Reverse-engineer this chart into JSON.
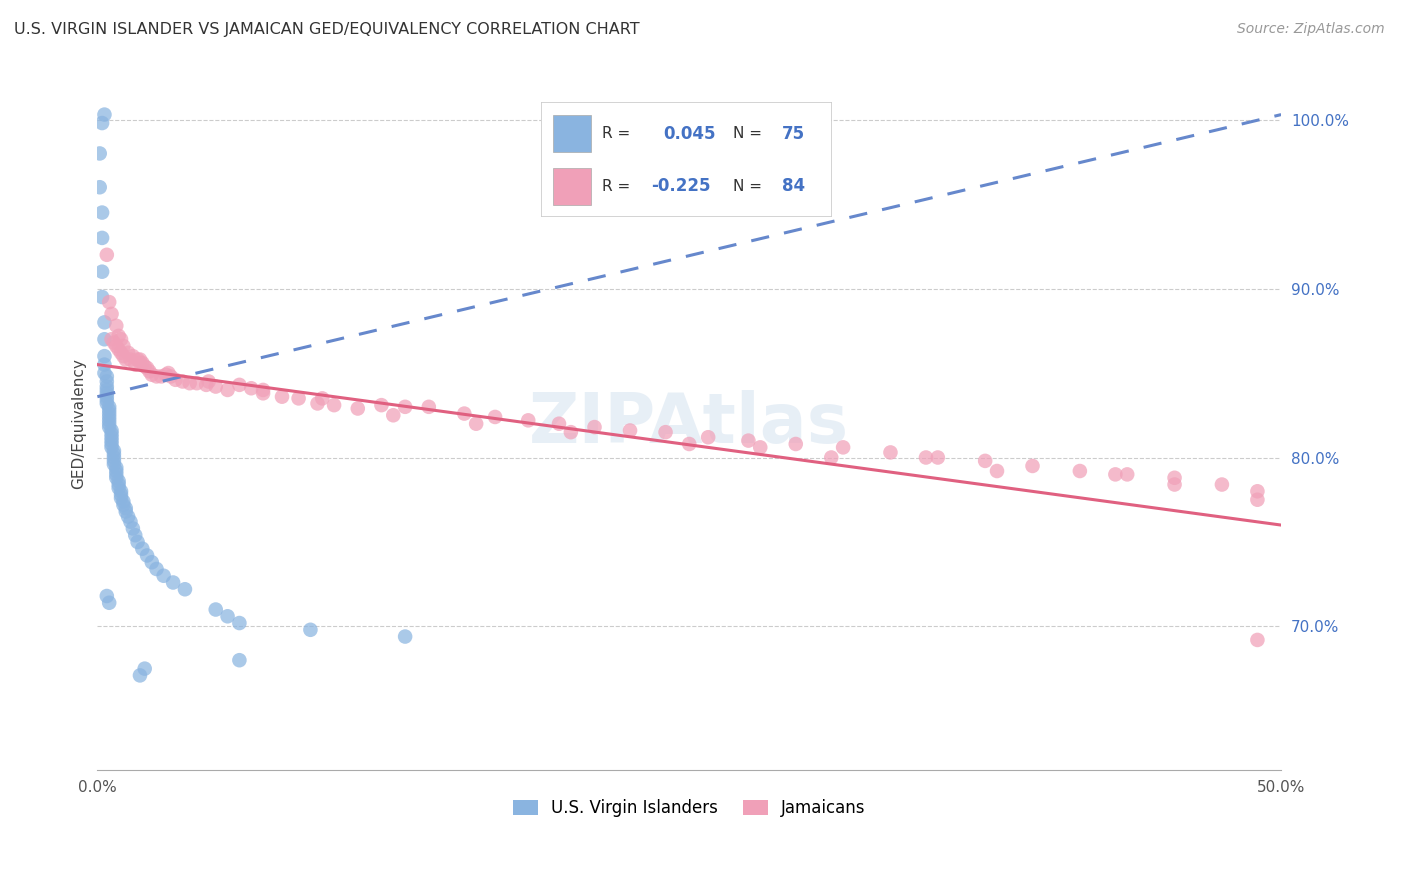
{
  "title": "U.S. VIRGIN ISLANDER VS JAMAICAN GED/EQUIVALENCY CORRELATION CHART",
  "source": "Source: ZipAtlas.com",
  "ylabel": "GED/Equivalency",
  "xlim": [
    0.0,
    0.5
  ],
  "ylim": [
    0.615,
    1.025
  ],
  "xticks": [
    0.0,
    0.1,
    0.2,
    0.3,
    0.4,
    0.5
  ],
  "xtick_labels": [
    "0.0%",
    "",
    "",
    "",
    "",
    "50.0%"
  ],
  "ytick_labels_right": [
    "70.0%",
    "80.0%",
    "90.0%",
    "100.0%"
  ],
  "ytick_positions_right": [
    0.7,
    0.8,
    0.9,
    1.0
  ],
  "color_blue": "#8ab4e0",
  "color_pink": "#f0a0b8",
  "line_blue_color": "#6688cc",
  "line_pink_color": "#e06080",
  "trendline1_x": [
    0.0,
    0.5
  ],
  "trendline1_y": [
    0.836,
    1.003
  ],
  "trendline2_x": [
    0.0,
    0.5
  ],
  "trendline2_y": [
    0.855,
    0.76
  ],
  "vi_x": [
    0.001,
    0.001,
    0.002,
    0.002,
    0.002,
    0.002,
    0.003,
    0.003,
    0.003,
    0.003,
    0.003,
    0.004,
    0.004,
    0.004,
    0.004,
    0.004,
    0.004,
    0.004,
    0.004,
    0.005,
    0.005,
    0.005,
    0.005,
    0.005,
    0.005,
    0.005,
    0.006,
    0.006,
    0.006,
    0.006,
    0.006,
    0.006,
    0.007,
    0.007,
    0.007,
    0.007,
    0.007,
    0.008,
    0.008,
    0.008,
    0.008,
    0.009,
    0.009,
    0.009,
    0.01,
    0.01,
    0.01,
    0.011,
    0.011,
    0.012,
    0.012,
    0.013,
    0.014,
    0.015,
    0.016,
    0.017,
    0.019,
    0.021,
    0.023,
    0.025,
    0.028,
    0.032,
    0.037,
    0.004,
    0.005,
    0.05,
    0.055,
    0.06,
    0.09,
    0.13,
    0.003,
    0.002,
    0.06,
    0.02,
    0.018
  ],
  "vi_y": [
    0.98,
    0.96,
    0.945,
    0.93,
    0.91,
    0.895,
    0.88,
    0.87,
    0.86,
    0.855,
    0.85,
    0.848,
    0.845,
    0.842,
    0.84,
    0.838,
    0.836,
    0.834,
    0.832,
    0.83,
    0.828,
    0.826,
    0.824,
    0.822,
    0.82,
    0.818,
    0.816,
    0.814,
    0.812,
    0.81,
    0.808,
    0.806,
    0.804,
    0.802,
    0.8,
    0.798,
    0.796,
    0.794,
    0.792,
    0.79,
    0.788,
    0.786,
    0.784,
    0.782,
    0.78,
    0.778,
    0.776,
    0.774,
    0.772,
    0.77,
    0.768,
    0.765,
    0.762,
    0.758,
    0.754,
    0.75,
    0.746,
    0.742,
    0.738,
    0.734,
    0.73,
    0.726,
    0.722,
    0.718,
    0.714,
    0.71,
    0.706,
    0.702,
    0.698,
    0.694,
    1.003,
    0.998,
    0.68,
    0.675,
    0.671
  ],
  "jam_x": [
    0.004,
    0.005,
    0.006,
    0.006,
    0.007,
    0.008,
    0.008,
    0.009,
    0.009,
    0.01,
    0.01,
    0.011,
    0.011,
    0.012,
    0.013,
    0.014,
    0.015,
    0.016,
    0.017,
    0.018,
    0.019,
    0.02,
    0.021,
    0.022,
    0.023,
    0.025,
    0.027,
    0.029,
    0.031,
    0.033,
    0.036,
    0.039,
    0.042,
    0.046,
    0.05,
    0.055,
    0.06,
    0.065,
    0.07,
    0.078,
    0.085,
    0.093,
    0.1,
    0.11,
    0.12,
    0.13,
    0.14,
    0.155,
    0.168,
    0.182,
    0.195,
    0.21,
    0.225,
    0.24,
    0.258,
    0.275,
    0.295,
    0.315,
    0.335,
    0.355,
    0.375,
    0.395,
    0.415,
    0.435,
    0.455,
    0.475,
    0.49,
    0.018,
    0.03,
    0.047,
    0.07,
    0.095,
    0.125,
    0.16,
    0.2,
    0.25,
    0.31,
    0.38,
    0.455,
    0.49,
    0.28,
    0.35,
    0.43,
    0.49
  ],
  "jam_y": [
    0.92,
    0.892,
    0.885,
    0.87,
    0.868,
    0.866,
    0.878,
    0.864,
    0.872,
    0.862,
    0.87,
    0.866,
    0.86,
    0.858,
    0.862,
    0.858,
    0.86,
    0.855,
    0.858,
    0.856,
    0.856,
    0.854,
    0.853,
    0.851,
    0.849,
    0.848,
    0.848,
    0.849,
    0.848,
    0.846,
    0.845,
    0.844,
    0.844,
    0.843,
    0.842,
    0.84,
    0.843,
    0.841,
    0.838,
    0.836,
    0.835,
    0.832,
    0.831,
    0.829,
    0.831,
    0.83,
    0.83,
    0.826,
    0.824,
    0.822,
    0.82,
    0.818,
    0.816,
    0.815,
    0.812,
    0.81,
    0.808,
    0.806,
    0.803,
    0.8,
    0.798,
    0.795,
    0.792,
    0.79,
    0.788,
    0.784,
    0.78,
    0.858,
    0.85,
    0.845,
    0.84,
    0.835,
    0.825,
    0.82,
    0.815,
    0.808,
    0.8,
    0.792,
    0.784,
    0.775,
    0.806,
    0.8,
    0.79,
    0.692
  ]
}
